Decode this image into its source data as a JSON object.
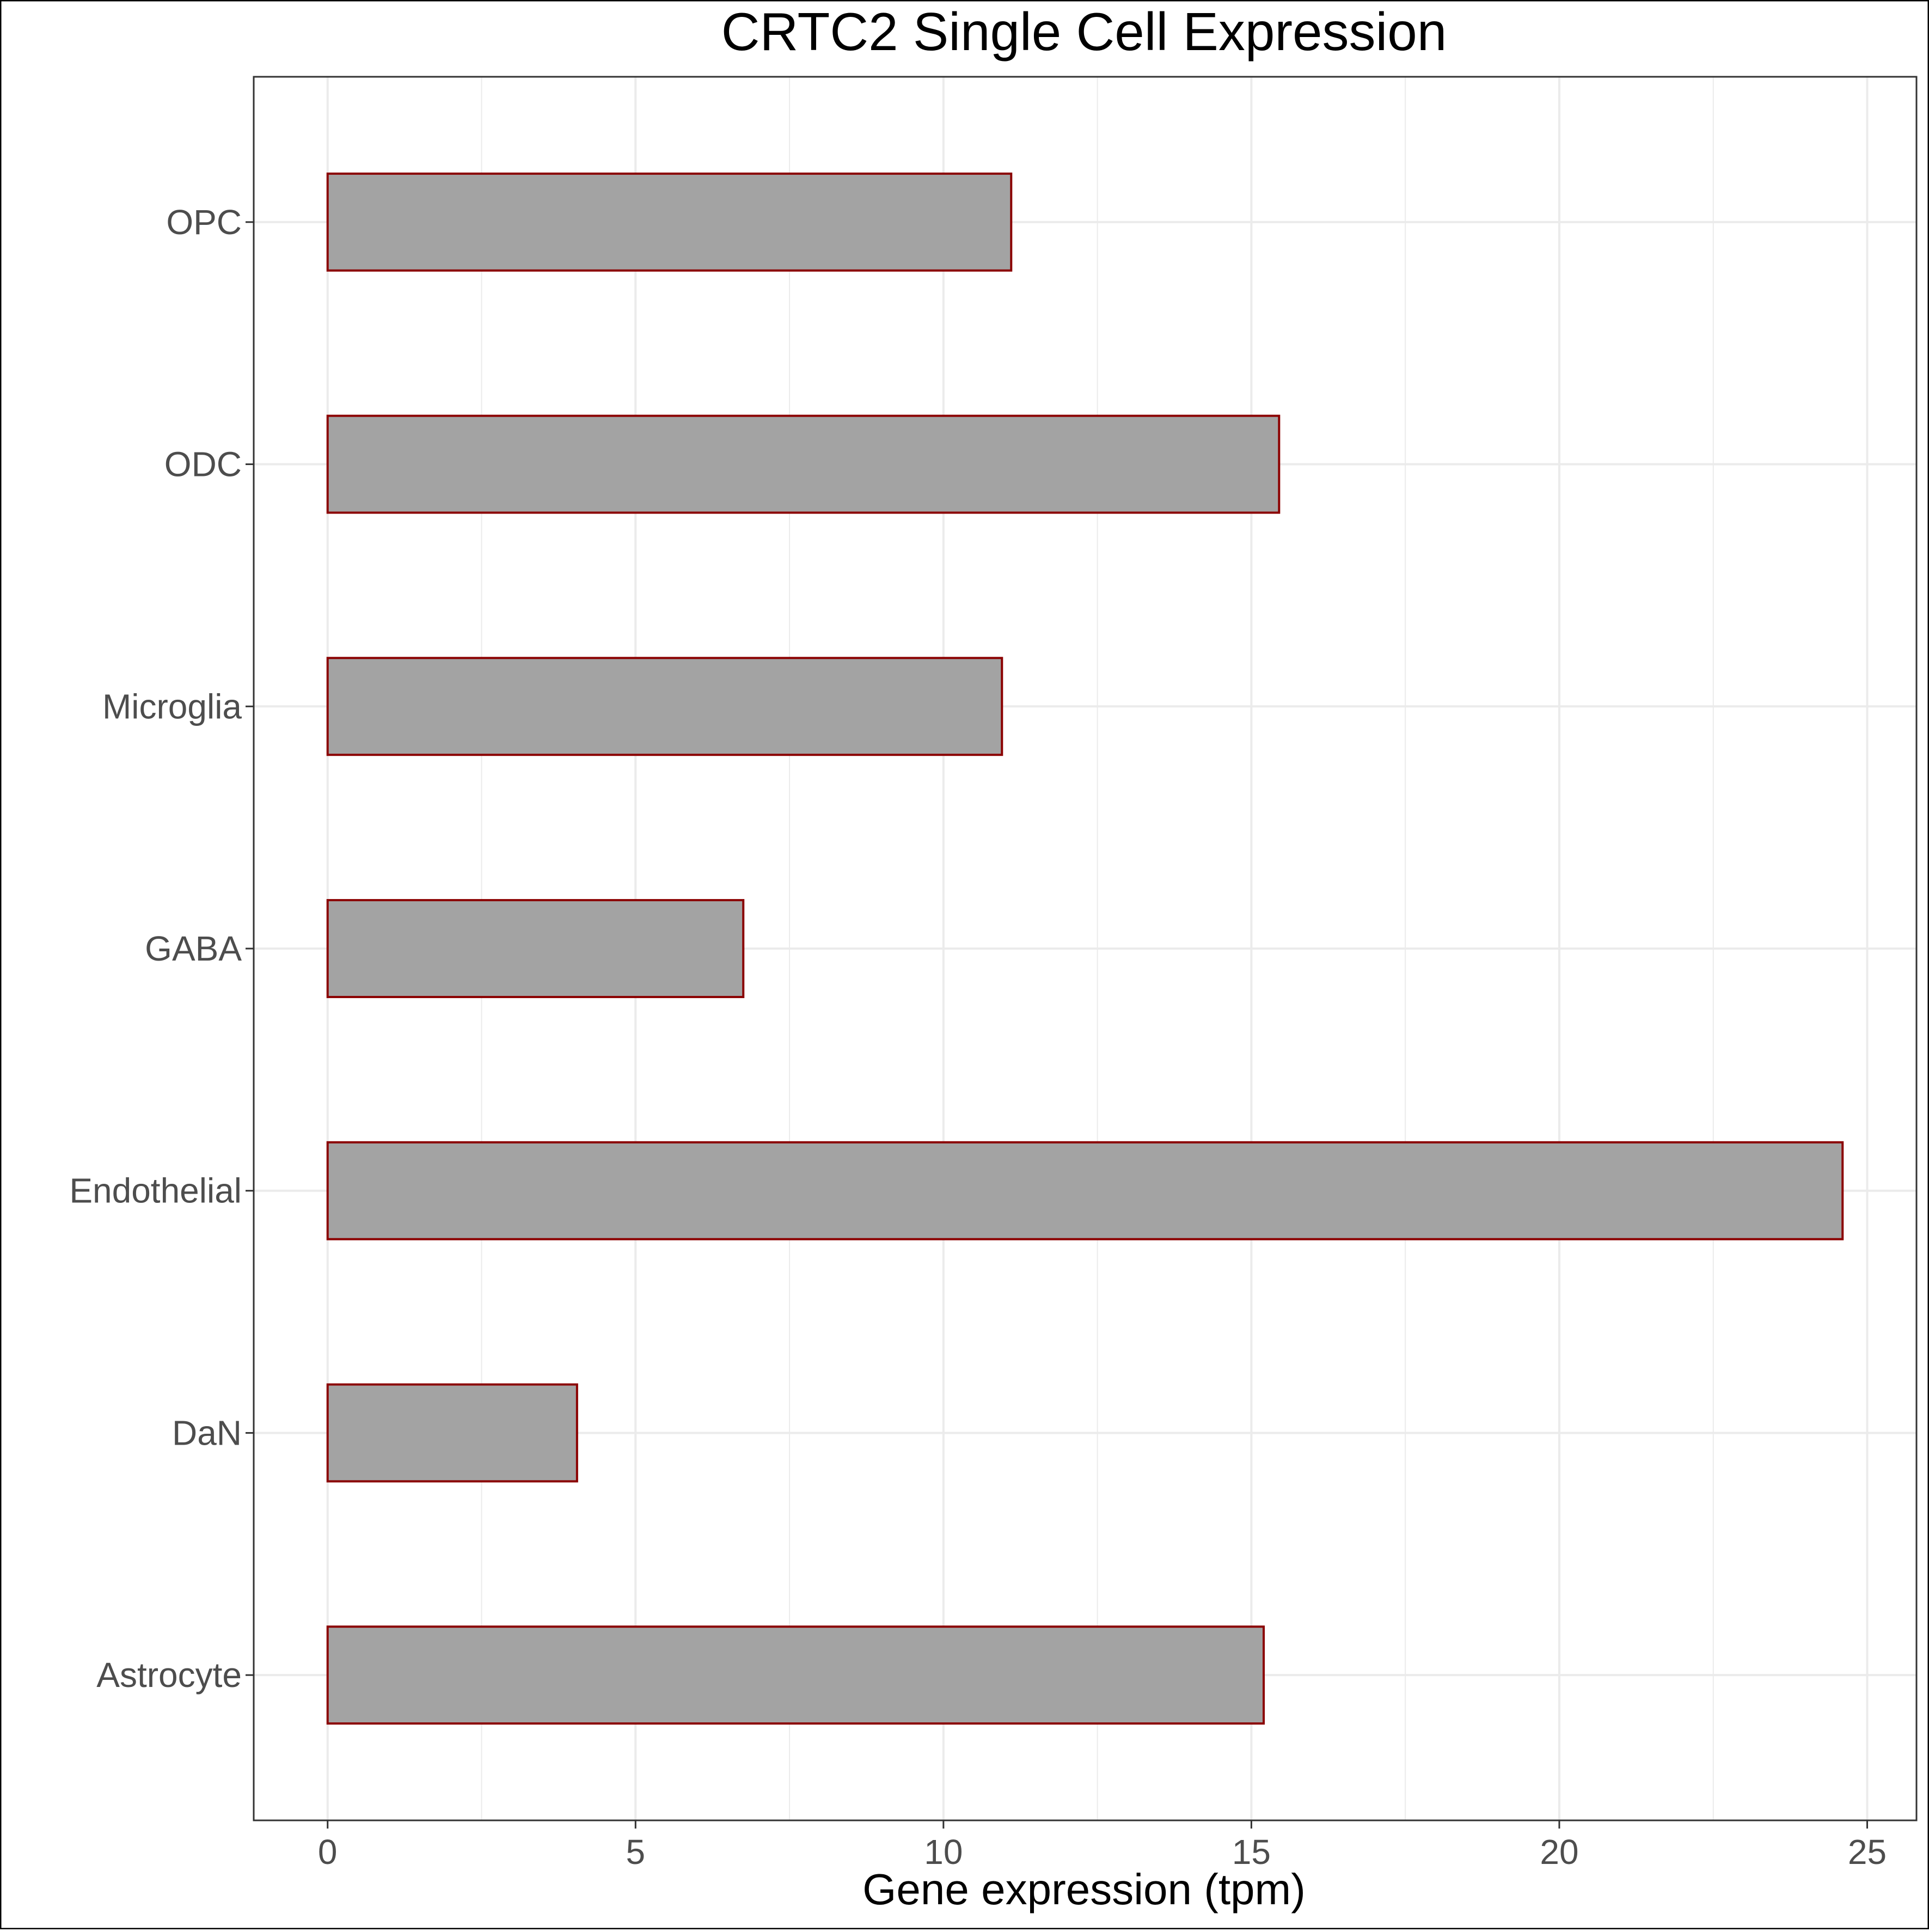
{
  "chart_data": {
    "type": "bar",
    "orientation": "horizontal",
    "title": "CRTC2 Single Cell Expression",
    "xlabel": "Gene expression (tpm)",
    "ylabel": "",
    "categories": [
      "Astrocyte",
      "DaN",
      "Endothelial",
      "GABA",
      "Microglia",
      "ODC",
      "OPC"
    ],
    "values": [
      15.2,
      4.05,
      24.6,
      6.75,
      10.95,
      15.45,
      11.1
    ],
    "xlim": [
      -1.2,
      25.8
    ],
    "xticks": [
      0,
      5,
      10,
      15,
      20,
      25
    ],
    "grid": true,
    "legend": "none",
    "colors": {
      "bar_fill": "#a3a3a3",
      "bar_stroke": "#8b0000",
      "grid": "#ebebeb",
      "panel_border": "#333333",
      "tick_text": "#4d4d4d"
    }
  }
}
